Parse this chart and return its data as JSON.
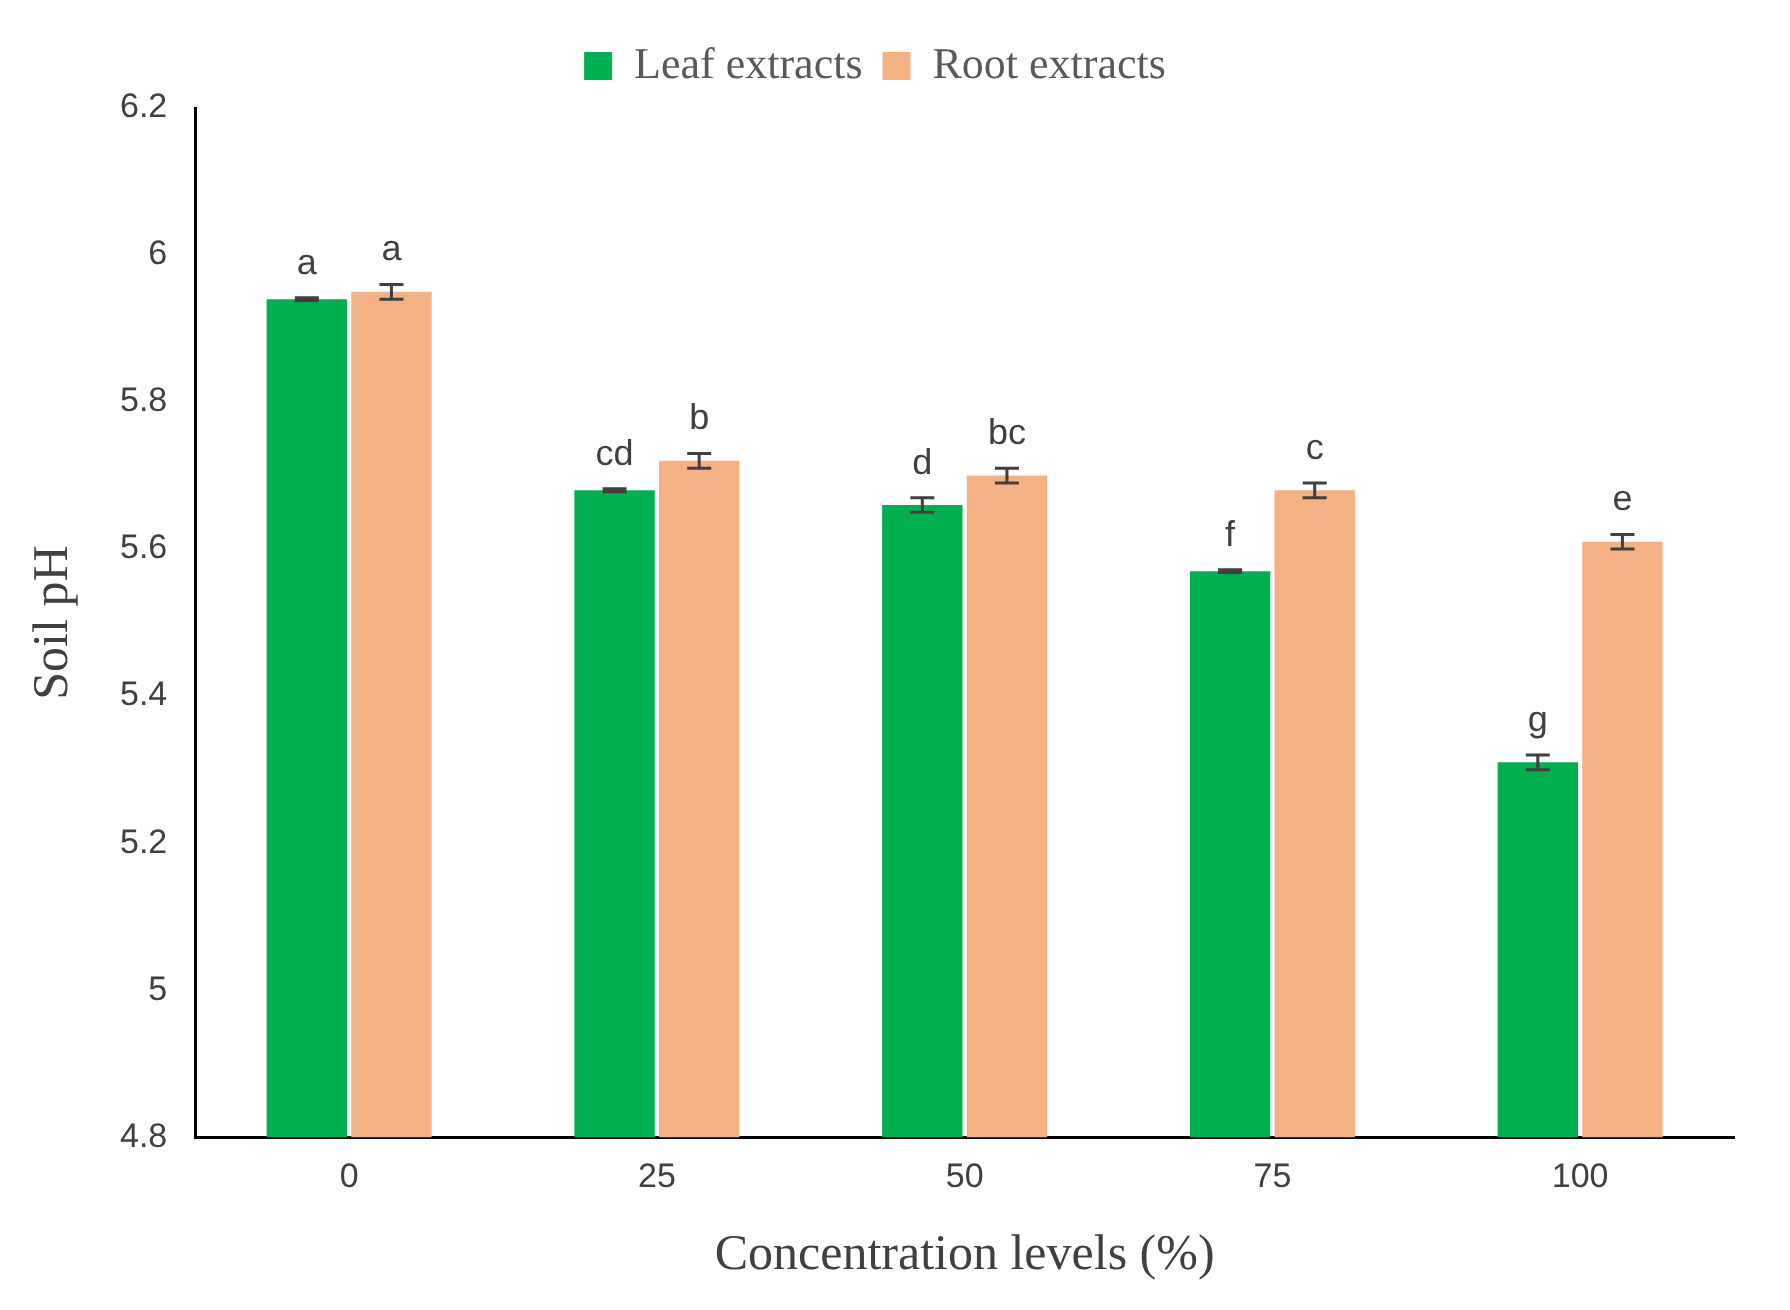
{
  "chart_data": {
    "type": "bar",
    "xlabel": "Concentration levels (%)",
    "ylabel": "Soil pH",
    "categories": [
      "0",
      "25",
      "50",
      "75",
      "100"
    ],
    "series": [
      {
        "name": "Leaf extracts",
        "color": "#00b050",
        "values": [
          5.94,
          5.68,
          5.66,
          5.57,
          5.31
        ],
        "errors": [
          0.002,
          0.002,
          0.01,
          0.002,
          0.01
        ],
        "value_labels": [
          "a",
          "cd",
          "d",
          "f",
          "g"
        ]
      },
      {
        "name": "Root extracts",
        "color": "#f4b183",
        "values": [
          5.95,
          5.72,
          5.7,
          5.68,
          5.61
        ],
        "errors": [
          0.01,
          0.01,
          0.01,
          0.01,
          0.01
        ],
        "value_labels": [
          "a",
          "b",
          "bc",
          "c",
          "e"
        ]
      }
    ],
    "ylim": [
      4.8,
      6.2
    ],
    "yticks": [
      {
        "value": 4.8,
        "label": "4.8"
      },
      {
        "value": 5,
        "label": "5"
      },
      {
        "value": 5.2,
        "label": "5.2"
      },
      {
        "value": 5.4,
        "label": "5.4"
      },
      {
        "value": 5.6,
        "label": "5.6"
      },
      {
        "value": 5.8,
        "label": "5.8"
      },
      {
        "value": 6,
        "label": "6"
      },
      {
        "value": 6.2,
        "label": "6.2"
      }
    ],
    "grid": false,
    "legend": "top"
  }
}
